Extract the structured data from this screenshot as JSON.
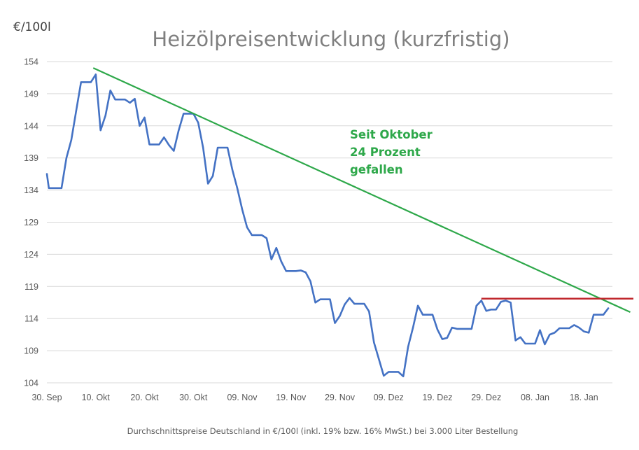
{
  "chart_data": {
    "type": "line",
    "title": "Heizölpreisentwicklung (kurzfristig)",
    "unit_label": "€/100l",
    "footnote": "Durchschnittspreise Deutschland in €/100l (inkl. 19% bzw. 16%  MwSt.) bei 3.000 Liter Bestellung",
    "ylim": [
      104,
      154
    ],
    "yticks": [
      104,
      109,
      114,
      119,
      124,
      129,
      134,
      139,
      144,
      149,
      154
    ],
    "xlim": [
      0,
      118
    ],
    "xticks": [
      {
        "day": 0,
        "label": "30. Sep"
      },
      {
        "day": 10,
        "label": "10. Okt"
      },
      {
        "day": 20,
        "label": "20. Okt"
      },
      {
        "day": 30,
        "label": "30. Okt"
      },
      {
        "day": 40,
        "label": "09. Nov"
      },
      {
        "day": 50,
        "label": "19. Nov"
      },
      {
        "day": 60,
        "label": "29. Nov"
      },
      {
        "day": 70,
        "label": "09. Dez"
      },
      {
        "day": 80,
        "label": "19. Dez"
      },
      {
        "day": 90,
        "label": "29. Dez"
      },
      {
        "day": 100,
        "label": "08. Jan"
      },
      {
        "day": 110,
        "label": "18. Jan"
      }
    ],
    "grid": true,
    "series": [
      {
        "color": "#4472c4",
        "points": [
          [
            0,
            136.5
          ],
          [
            0.4,
            134.3
          ],
          [
            1,
            134.3
          ],
          [
            2,
            134.3
          ],
          [
            3,
            134.3
          ],
          [
            4,
            139
          ],
          [
            5,
            141.8
          ],
          [
            6,
            146.3
          ],
          [
            7,
            150.8
          ],
          [
            8,
            150.8
          ],
          [
            9,
            150.8
          ],
          [
            10,
            152
          ],
          [
            11,
            143.3
          ],
          [
            12,
            145.6
          ],
          [
            13,
            149.5
          ],
          [
            14,
            148.1
          ],
          [
            15,
            148.1
          ],
          [
            16,
            148.1
          ],
          [
            17,
            147.6
          ],
          [
            18,
            148.2
          ],
          [
            19,
            144
          ],
          [
            20,
            145.3
          ],
          [
            21,
            141.1
          ],
          [
            22,
            141.1
          ],
          [
            23,
            141.1
          ],
          [
            24,
            142.2
          ],
          [
            25,
            141
          ],
          [
            26,
            140.1
          ],
          [
            27,
            143.3
          ],
          [
            28,
            145.9
          ],
          [
            29,
            145.9
          ],
          [
            30,
            145.9
          ],
          [
            31,
            144.5
          ],
          [
            32,
            140.6
          ],
          [
            33,
            135
          ],
          [
            34,
            136.2
          ],
          [
            35,
            140.6
          ],
          [
            36,
            140.6
          ],
          [
            37,
            140.6
          ],
          [
            38,
            137.1
          ],
          [
            39,
            134.3
          ],
          [
            40,
            131
          ],
          [
            41,
            128.2
          ],
          [
            42,
            127
          ],
          [
            43,
            127
          ],
          [
            44,
            127
          ],
          [
            45,
            126.5
          ],
          [
            46,
            123.2
          ],
          [
            47,
            125
          ],
          [
            48,
            122.9
          ],
          [
            49,
            121.4
          ],
          [
            50,
            121.4
          ],
          [
            51,
            121.4
          ],
          [
            52,
            121.5
          ],
          [
            53,
            121.2
          ],
          [
            54,
            119.8
          ],
          [
            55,
            116.5
          ],
          [
            56,
            117
          ],
          [
            57,
            117
          ],
          [
            58,
            117
          ],
          [
            59,
            113.3
          ],
          [
            60,
            114.4
          ],
          [
            61,
            116.2
          ],
          [
            62,
            117.2
          ],
          [
            63,
            116.3
          ],
          [
            64,
            116.3
          ],
          [
            65,
            116.3
          ],
          [
            66,
            115.1
          ],
          [
            67,
            110.3
          ],
          [
            68,
            107.7
          ],
          [
            69,
            105.1
          ],
          [
            70,
            105.7
          ],
          [
            71,
            105.7
          ],
          [
            72,
            105.7
          ],
          [
            73,
            105
          ],
          [
            74,
            109.6
          ],
          [
            75,
            112.6
          ],
          [
            76,
            116
          ],
          [
            77,
            114.6
          ],
          [
            78,
            114.6
          ],
          [
            79,
            114.6
          ],
          [
            80,
            112.3
          ],
          [
            81,
            110.8
          ],
          [
            82,
            111
          ],
          [
            83,
            112.6
          ],
          [
            84,
            112.4
          ],
          [
            85,
            112.4
          ],
          [
            86,
            112.4
          ],
          [
            87,
            112.4
          ],
          [
            88,
            116
          ],
          [
            89,
            116.8
          ],
          [
            90,
            115.2
          ],
          [
            91,
            115.4
          ],
          [
            92,
            115.4
          ],
          [
            93,
            116.6
          ],
          [
            94,
            116.8
          ],
          [
            95,
            116.5
          ],
          [
            96,
            110.6
          ],
          [
            97,
            111.1
          ],
          [
            98,
            110.1
          ],
          [
            99,
            110.1
          ],
          [
            100,
            110.1
          ],
          [
            101,
            112.2
          ],
          [
            102,
            110
          ],
          [
            103,
            111.5
          ],
          [
            104,
            111.8
          ],
          [
            105,
            112.5
          ],
          [
            106,
            112.5
          ],
          [
            107,
            112.5
          ],
          [
            108,
            113
          ],
          [
            109,
            112.6
          ],
          [
            110,
            112
          ],
          [
            111,
            111.8
          ],
          [
            112,
            114.6
          ],
          [
            113,
            114.6
          ],
          [
            114,
            114.6
          ],
          [
            115,
            115.6
          ]
        ]
      }
    ],
    "trendline": {
      "color": "#2ea84a",
      "from": [
        9.5,
        153
      ],
      "to": [
        119.5,
        115
      ]
    },
    "resistance_line": {
      "color": "#c0282d",
      "from": [
        89,
        117.1
      ],
      "to": [
        122,
        117.1
      ]
    },
    "annotation_lines": [
      "Seit Oktober",
      "24 Prozent",
      "gefallen"
    ]
  }
}
